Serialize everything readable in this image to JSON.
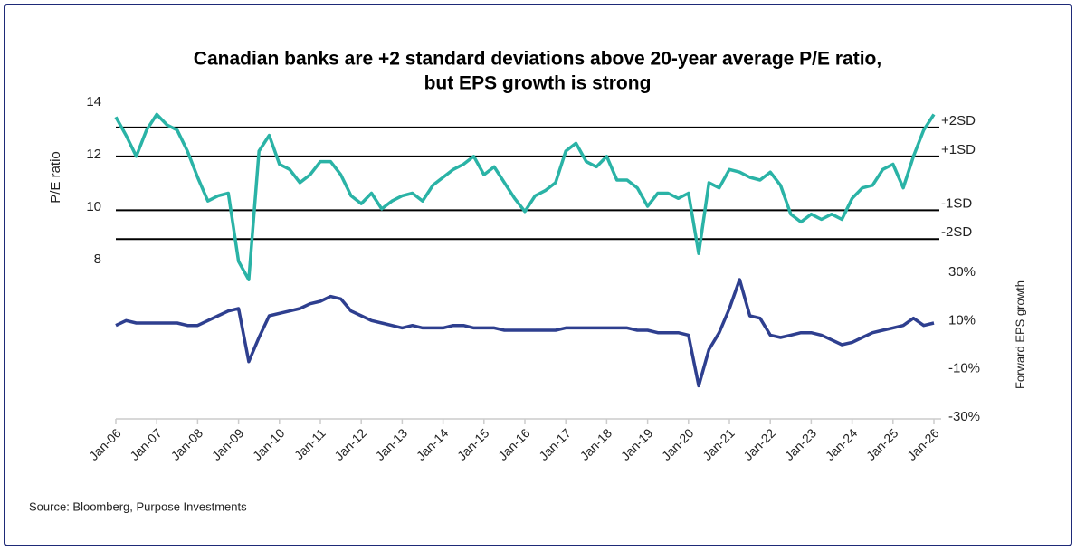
{
  "chart_data": {
    "type": "line",
    "title": "Canadian banks are +2 standard deviations above 20-year average P/E ratio,",
    "subtitle": "but EPS growth is strong",
    "y_label": "P/E ratio",
    "y2_label": "Forward EPS growth",
    "source": "Source: Bloomberg, Purpose Investments",
    "x": [
      "Jan-06",
      "Apr-06",
      "Jul-06",
      "Oct-06",
      "Jan-07",
      "Apr-07",
      "Jul-07",
      "Oct-07",
      "Jan-08",
      "Apr-08",
      "Jul-08",
      "Oct-08",
      "Jan-09",
      "Apr-09",
      "Jul-09",
      "Oct-09",
      "Jan-10",
      "Apr-10",
      "Jul-10",
      "Oct-10",
      "Jan-11",
      "Apr-11",
      "Jul-11",
      "Oct-11",
      "Jan-12",
      "Apr-12",
      "Jul-12",
      "Oct-12",
      "Jan-13",
      "Apr-13",
      "Jul-13",
      "Oct-13",
      "Jan-14",
      "Apr-14",
      "Jul-14",
      "Oct-14",
      "Jan-15",
      "Apr-15",
      "Jul-15",
      "Oct-15",
      "Jan-16",
      "Apr-16",
      "Jul-16",
      "Oct-16",
      "Jan-17",
      "Apr-17",
      "Jul-17",
      "Oct-17",
      "Jan-18",
      "Apr-18",
      "Jul-18",
      "Oct-18",
      "Jan-19",
      "Apr-19",
      "Jul-19",
      "Oct-19",
      "Jan-20",
      "Apr-20",
      "Jul-20",
      "Oct-20",
      "Jan-21",
      "Apr-21",
      "Jul-21",
      "Oct-21",
      "Jan-22",
      "Apr-22",
      "Jul-22",
      "Oct-22",
      "Jan-23",
      "Apr-23",
      "Jul-23",
      "Oct-23",
      "Jan-24",
      "Apr-24",
      "Jul-24",
      "Oct-24",
      "Jan-25",
      "Apr-25",
      "Jul-25",
      "Oct-25",
      "Jan-26"
    ],
    "xlim": [
      "Jan-06",
      "Jan-26"
    ],
    "xticks": [
      "Jan-06",
      "Jan-07",
      "Jan-08",
      "Jan-09",
      "Jan-10",
      "Jan-11",
      "Jan-12",
      "Jan-13",
      "Jan-14",
      "Jan-15",
      "Jan-16",
      "Jan-17",
      "Jan-18",
      "Jan-19",
      "Jan-20",
      "Jan-21",
      "Jan-22",
      "Jan-23",
      "Jan-24",
      "Jan-25",
      "Jan-26"
    ],
    "ylim": [
      2,
      14.2
    ],
    "yticks": [
      8,
      10,
      12,
      14
    ],
    "y2lim": [
      -30.7,
      101.9
    ],
    "y2ticks": [
      {
        "value": 30,
        "label": "30%"
      },
      {
        "value": 10,
        "label": "10%"
      },
      {
        "value": -10,
        "label": "-10%"
      },
      {
        "value": -30,
        "label": "-30%"
      }
    ],
    "sd_lines": [
      {
        "label": "+2SD",
        "value": 13.1
      },
      {
        "label": "+1SD",
        "value": 12.0
      },
      {
        "label": "-1SD",
        "value": 9.95
      },
      {
        "label": "-2SD",
        "value": 8.85
      }
    ],
    "series": [
      {
        "name": "P/E ratio",
        "color": "#2ab3a6",
        "values": [
          13.5,
          12.8,
          12.0,
          13.0,
          13.6,
          13.2,
          13.0,
          12.2,
          11.2,
          10.3,
          10.5,
          10.6,
          8.0,
          7.3,
          12.2,
          12.8,
          11.7,
          11.5,
          11.0,
          11.3,
          11.8,
          11.8,
          11.3,
          10.5,
          10.2,
          10.6,
          10.0,
          10.3,
          10.5,
          10.6,
          10.3,
          10.9,
          11.2,
          11.5,
          11.7,
          12.0,
          11.3,
          11.6,
          11.0,
          10.4,
          9.9,
          10.5,
          10.7,
          11.0,
          12.2,
          12.5,
          11.8,
          11.6,
          12.0,
          11.1,
          11.1,
          10.8,
          10.1,
          10.6,
          10.6,
          10.4,
          10.6,
          8.3,
          11.0,
          10.8,
          11.5,
          11.4,
          11.2,
          11.1,
          11.4,
          10.9,
          9.8,
          9.5,
          9.8,
          9.6,
          9.8,
          9.6,
          10.4,
          10.8,
          10.9,
          11.5,
          11.7,
          10.8,
          12.0,
          13.0,
          13.6
        ]
      },
      {
        "name": "Forward EPS growth",
        "color": "#2e3f8f",
        "axis": "y2",
        "values": [
          8,
          10,
          9,
          9,
          9,
          9,
          9,
          8,
          8,
          10,
          12,
          14,
          15,
          -7,
          3,
          12,
          13,
          14,
          15,
          17,
          18,
          20,
          19,
          14,
          12,
          10,
          9,
          8,
          7,
          8,
          7,
          7,
          7,
          8,
          8,
          7,
          7,
          7,
          6,
          6,
          6,
          6,
          6,
          6,
          7,
          7,
          7,
          7,
          7,
          7,
          7,
          6,
          6,
          5,
          5,
          5,
          4,
          -17,
          -2,
          5,
          15,
          27,
          12,
          11,
          4,
          3,
          4,
          5,
          5,
          4,
          2,
          0,
          1,
          3,
          5,
          6,
          7,
          8,
          11,
          8,
          9
        ]
      }
    ]
  }
}
